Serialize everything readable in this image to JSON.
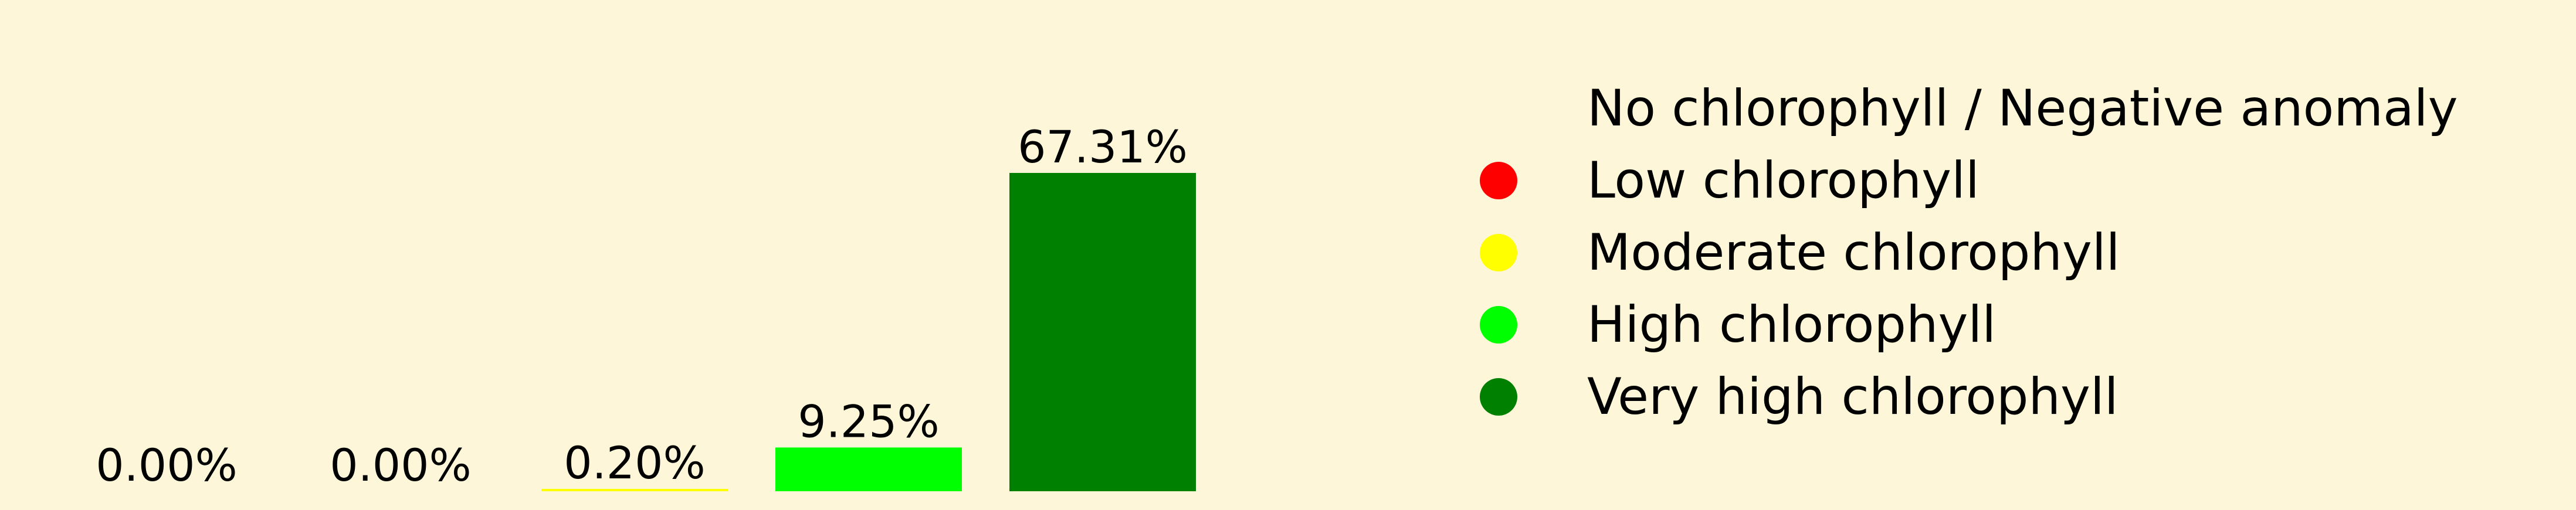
{
  "chart_data": {
    "type": "bar",
    "categories": [
      "No chlorophyll / Negative anomaly",
      "Low chlorophyll",
      "Moderate chlorophyll",
      "High chlorophyll",
      "Very high chlorophyll"
    ],
    "values": [
      0.0,
      0.0,
      0.2,
      9.25,
      67.31
    ],
    "value_labels": [
      "0.00%",
      "0.00%",
      "0.20%",
      "9.25%",
      "67.31%"
    ],
    "colors": [
      "#fdf6d8",
      "#ff0000",
      "#ffff00",
      "#00ff00",
      "#008000"
    ],
    "ylim": [
      0,
      67.31
    ],
    "grid": false,
    "legend_position": "right",
    "title": "",
    "xlabel": "",
    "ylabel": ""
  },
  "background_color": "#fdf6d8"
}
